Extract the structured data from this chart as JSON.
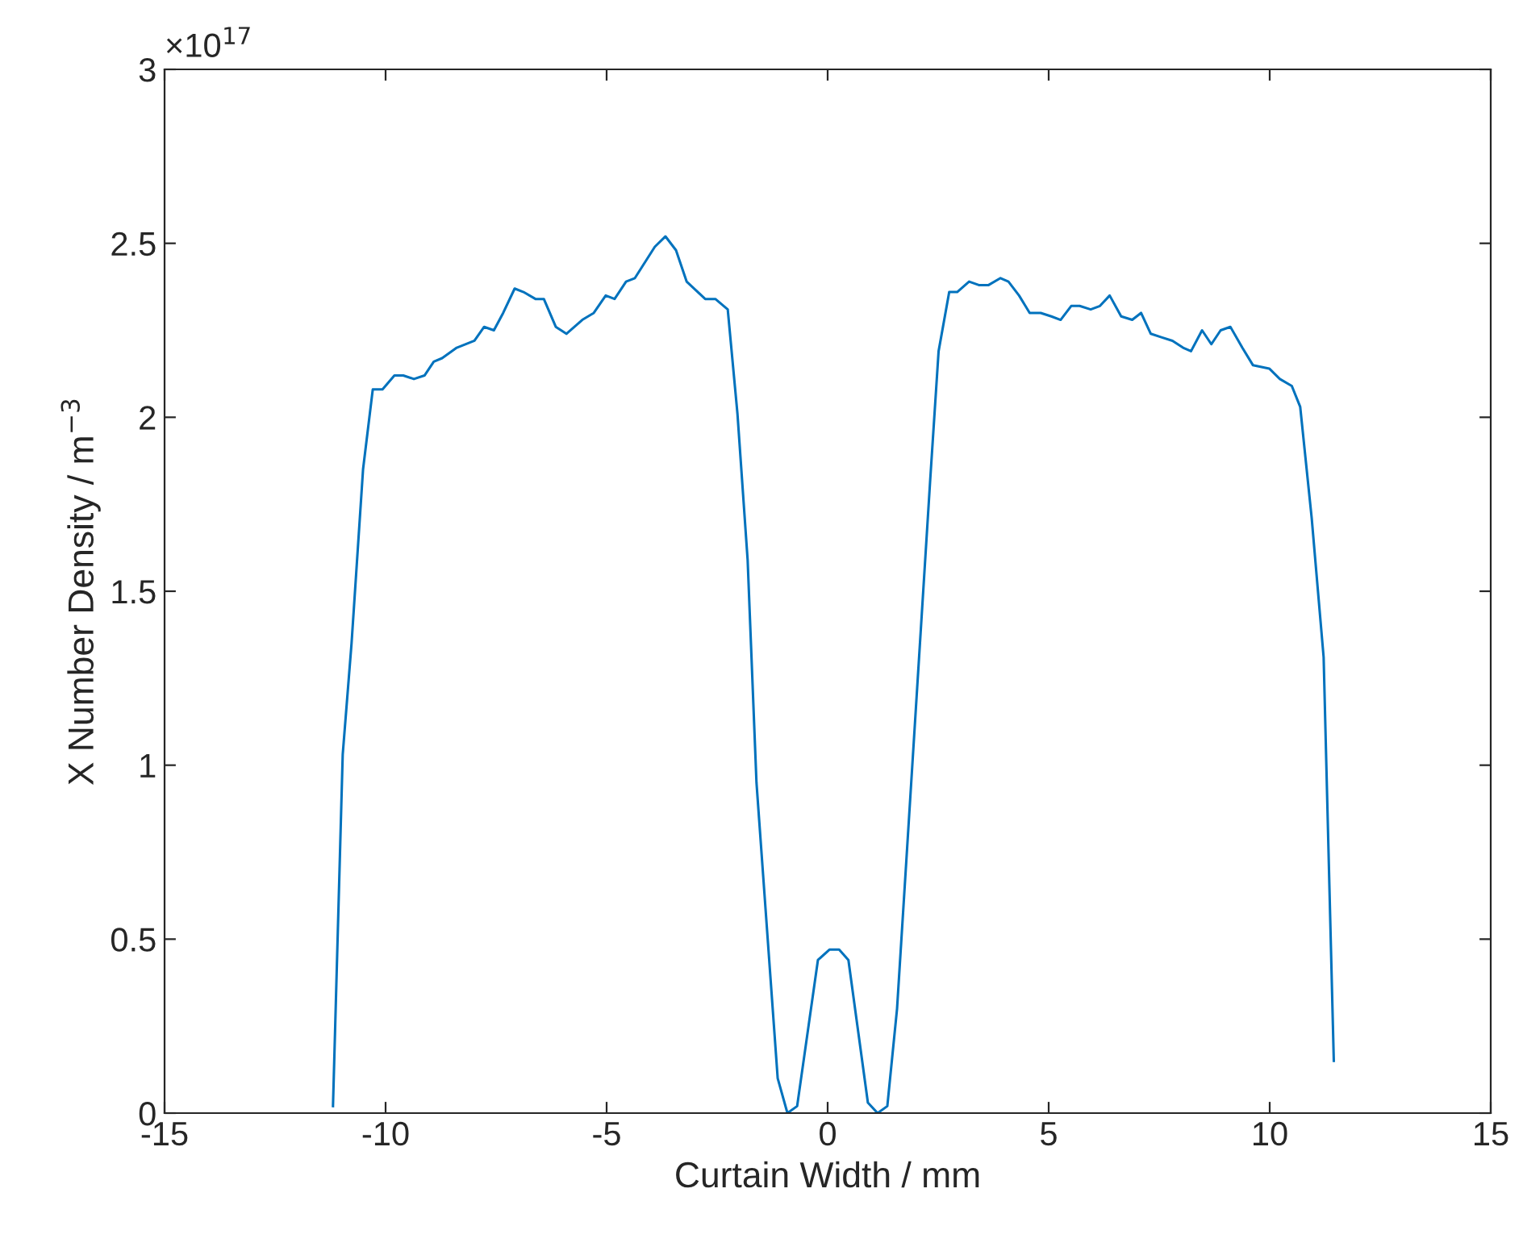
{
  "chart_data": {
    "type": "line",
    "xlabel": "Curtain Width / mm",
    "ylabel": "X Number Density / m$^{−3}$",
    "annotations": [
      "×10$^{17}$"
    ],
    "xlim": [
      -15,
      15
    ],
    "xticks": [
      -15,
      -10,
      -5,
      0,
      5,
      10,
      15
    ],
    "ylim": [
      0,
      3
    ],
    "yticks": [
      0,
      0.5,
      1,
      1.5,
      2,
      2.5,
      3
    ],
    "grid": false,
    "legend": false,
    "marker": "none",
    "line_style": "solid",
    "series": [
      {
        "color": "#0072bd",
        "x": [
          -11.19,
          -10.97,
          -10.77,
          -10.51,
          -10.29,
          -10.07,
          -9.8,
          -9.6,
          -9.36,
          -9.12,
          -8.91,
          -8.72,
          -8.39,
          -7.99,
          -7.77,
          -7.55,
          -7.34,
          -7.08,
          -6.88,
          -6.61,
          -6.42,
          -6.15,
          -5.91,
          -5.55,
          -5.29,
          -5.02,
          -4.82,
          -4.56,
          -4.36,
          -3.91,
          -3.67,
          -3.43,
          -3.19,
          -2.77,
          -2.54,
          -2.26,
          -2.04,
          -1.81,
          -1.61,
          -1.13,
          -0.91,
          -0.69,
          -0.22,
          0.04,
          0.26,
          0.47,
          0.91,
          1.13,
          1.35,
          1.57,
          2.32,
          2.51,
          2.75,
          2.93,
          3.2,
          3.42,
          3.64,
          3.91,
          4.09,
          4.33,
          4.57,
          4.82,
          5.06,
          5.27,
          5.51,
          5.7,
          5.95,
          6.16,
          6.38,
          6.64,
          6.89,
          7.09,
          7.31,
          7.55,
          7.8,
          8.04,
          8.22,
          8.47,
          8.68,
          8.89,
          9.11,
          9.38,
          9.62,
          9.99,
          10.23,
          10.5,
          10.69,
          10.95,
          11.22,
          11.45
        ],
        "values": [
          0.02,
          1.03,
          1.35,
          1.85,
          2.08,
          2.08,
          2.12,
          2.12,
          2.11,
          2.12,
          2.16,
          2.17,
          2.2,
          2.22,
          2.26,
          2.25,
          2.3,
          2.37,
          2.36,
          2.34,
          2.34,
          2.26,
          2.24,
          2.28,
          2.3,
          2.35,
          2.34,
          2.39,
          2.4,
          2.49,
          2.52,
          2.48,
          2.39,
          2.34,
          2.34,
          2.31,
          2.01,
          1.59,
          0.95,
          0.1,
          0,
          0.02,
          0.44,
          0.47,
          0.47,
          0.44,
          0.03,
          0,
          0.02,
          0.3,
          1.82,
          2.19,
          2.36,
          2.36,
          2.39,
          2.38,
          2.38,
          2.4,
          2.39,
          2.35,
          2.3,
          2.3,
          2.29,
          2.28,
          2.32,
          2.32,
          2.31,
          2.32,
          2.35,
          2.29,
          2.28,
          2.3,
          2.24,
          2.23,
          2.22,
          2.2,
          2.19,
          2.25,
          2.21,
          2.25,
          2.26,
          2.2,
          2.15,
          2.14,
          2.11,
          2.09,
          2.03,
          1.71,
          1.31,
          0.15
        ]
      }
    ]
  }
}
